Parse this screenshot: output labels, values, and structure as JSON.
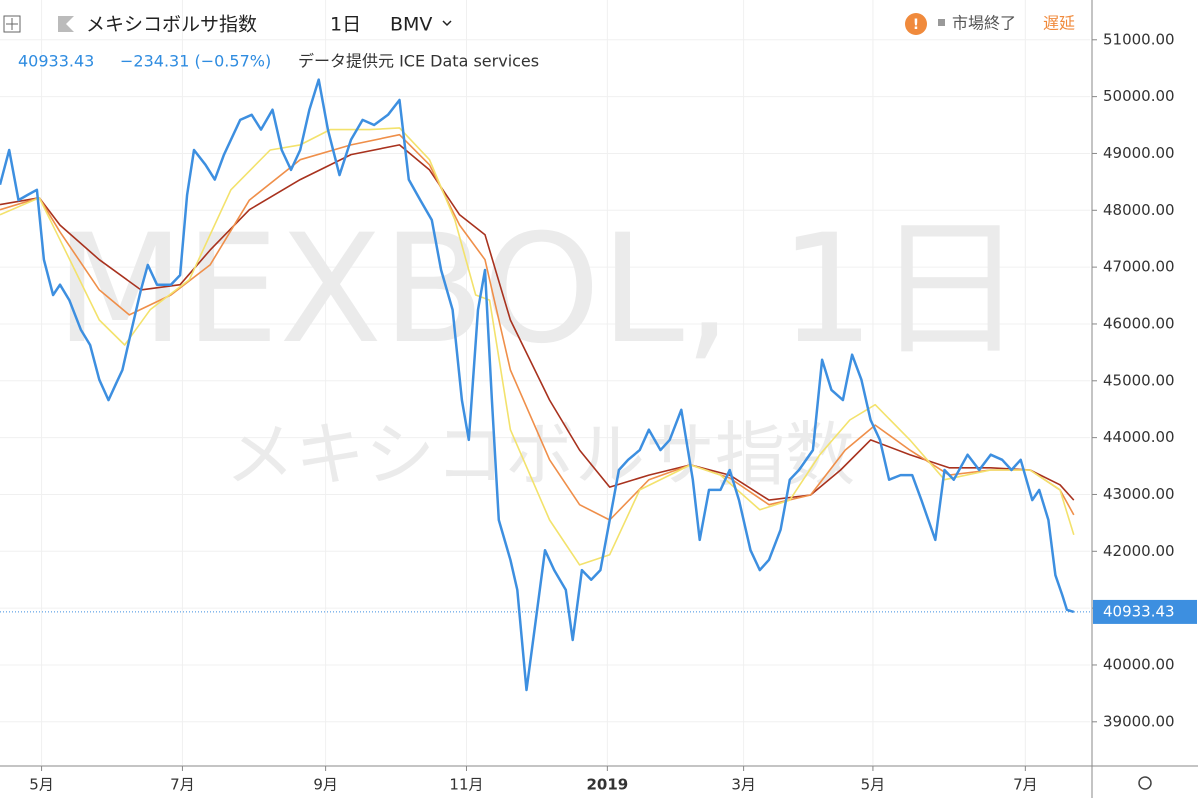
{
  "chart_data": {
    "type": "line",
    "title": "メキシコボルサ指数",
    "interval": "1日",
    "exchange": "BMV",
    "last": 40933.43,
    "change": "−234.31 (−0.57%)",
    "source": "データ提供元 ICE Data services",
    "status": "市場終了",
    "delay": "遅延",
    "watermark": "MEXBOL, 1日",
    "watermark_sub": "メキシコボルサ指数",
    "xlim": [
      0,
      472
    ],
    "xticks": [
      {
        "value": 18,
        "label": "5月"
      },
      {
        "value": 79,
        "label": "7月"
      },
      {
        "value": 141,
        "label": "9月"
      },
      {
        "value": 202,
        "label": "11月"
      },
      {
        "value": 263,
        "label": "2019"
      },
      {
        "value": 322,
        "label": "3月"
      },
      {
        "value": 378,
        "label": "5月"
      },
      {
        "value": 444,
        "label": "7月"
      }
    ],
    "ylim": [
      38240,
      51700
    ],
    "yticks": [
      {
        "value": 39000,
        "label": "39000.00"
      },
      {
        "value": 40000,
        "label": "40000.00"
      },
      {
        "value": 41000,
        "label": "41000.00"
      },
      {
        "value": 42000,
        "label": "42000.00"
      },
      {
        "value": 43000,
        "label": "43000.00"
      },
      {
        "value": 44000,
        "label": "44000.00"
      },
      {
        "value": 45000,
        "label": "45000.00"
      },
      {
        "value": 46000,
        "label": "46000.00"
      },
      {
        "value": 47000,
        "label": "47000.00"
      },
      {
        "value": 48000,
        "label": "48000.00"
      },
      {
        "value": 49000,
        "label": "49000.00"
      },
      {
        "value": 50000,
        "label": "50000.00"
      },
      {
        "value": 51000,
        "label": "51000.00"
      }
    ],
    "grid": true,
    "series": [
      {
        "color": "#a8321e",
        "x": [
          0,
          17,
          26,
          43,
          61,
          78,
          91,
          108,
          130,
          152,
          173,
          186,
          199,
          210,
          221,
          238,
          251,
          264,
          281,
          299,
          316,
          333,
          351,
          364,
          377,
          394,
          411,
          429,
          446,
          459,
          465
        ],
        "values": [
          48100,
          48220,
          47740,
          47130,
          46600,
          46690,
          47300,
          48010,
          48540,
          48980,
          49150,
          48710,
          47920,
          47570,
          46070,
          44660,
          43780,
          43130,
          43340,
          43520,
          43340,
          42900,
          42990,
          43430,
          43960,
          43700,
          43470,
          43470,
          43430,
          43170,
          42900
        ]
      },
      {
        "color": "#ef8f4a",
        "x": [
          0,
          17,
          26,
          43,
          56,
          74,
          91,
          108,
          130,
          152,
          173,
          186,
          199,
          210,
          221,
          238,
          251,
          264,
          281,
          299,
          316,
          333,
          351,
          366,
          379,
          394,
          411,
          429,
          446,
          459,
          465
        ],
        "values": [
          48010,
          48220,
          47620,
          46600,
          46160,
          46510,
          47040,
          48180,
          48890,
          49150,
          49330,
          48800,
          47740,
          47130,
          45190,
          43610,
          42820,
          42550,
          43260,
          43520,
          43290,
          42820,
          42990,
          43780,
          44220,
          43780,
          43340,
          43430,
          43430,
          43080,
          42640
        ]
      },
      {
        "color": "#f3e26c",
        "x": [
          0,
          17,
          26,
          43,
          54,
          65,
          82,
          100,
          117,
          130,
          143,
          160,
          173,
          186,
          197,
          206,
          212,
          221,
          238,
          251,
          264,
          277,
          299,
          312,
          329,
          342,
          355,
          368,
          379,
          394,
          409,
          429,
          446,
          459,
          465
        ],
        "values": [
          47920,
          48220,
          47480,
          46070,
          45630,
          46250,
          46780,
          48360,
          49060,
          49150,
          49420,
          49420,
          49450,
          48890,
          47830,
          46510,
          46420,
          44140,
          42550,
          41760,
          41940,
          43080,
          43520,
          43340,
          42730,
          42900,
          43700,
          44310,
          44580,
          43960,
          43260,
          43430,
          43430,
          43080,
          42290
        ]
      },
      {
        "color": "#3d8fe0",
        "x": [
          0,
          4,
          8,
          12,
          16,
          19,
          23,
          26,
          30,
          35,
          39,
          43,
          47,
          50,
          53,
          57,
          61,
          64,
          68,
          74,
          78,
          81,
          84,
          89,
          93,
          97,
          104,
          109,
          113,
          118,
          122,
          126,
          130,
          134,
          138,
          142,
          147,
          152,
          157,
          162,
          168,
          173,
          177,
          182,
          187,
          191,
          196,
          200,
          203,
          207,
          210,
          213,
          216,
          221,
          224,
          228,
          232,
          236,
          240,
          245,
          248,
          252,
          256,
          260,
          264,
          268,
          272,
          277,
          281,
          286,
          290,
          295,
          300,
          303,
          307,
          312,
          316,
          320,
          325,
          329,
          333,
          338,
          342,
          346,
          352,
          356,
          360,
          365,
          369,
          373,
          377,
          381,
          385,
          390,
          395,
          399,
          405,
          409,
          413,
          419,
          424,
          429,
          434,
          438,
          442,
          447,
          450,
          454,
          457,
          460,
          462,
          465
        ],
        "values": [
          48450,
          49060,
          48180,
          48270,
          48360,
          47130,
          46510,
          46690,
          46420,
          45900,
          45630,
          45020,
          44660,
          44930,
          45190,
          45900,
          46600,
          47040,
          46690,
          46690,
          46860,
          48270,
          49060,
          48800,
          48540,
          48980,
          49590,
          49680,
          49420,
          49770,
          49060,
          48710,
          49060,
          49770,
          50300,
          49420,
          48620,
          49240,
          49590,
          49500,
          49680,
          49940,
          48540,
          48180,
          47830,
          46950,
          46250,
          44660,
          43960,
          46250,
          46950,
          44660,
          42550,
          41850,
          41320,
          39560,
          40790,
          42020,
          41670,
          41320,
          40440,
          41670,
          41500,
          41670,
          42550,
          43430,
          43610,
          43780,
          44140,
          43780,
          43960,
          44490,
          43260,
          42200,
          43080,
          43080,
          43430,
          42900,
          42020,
          41670,
          41850,
          42380,
          43260,
          43430,
          43780,
          45370,
          44840,
          44660,
          45460,
          45020,
          44310,
          43960,
          43260,
          43340,
          43340,
          42900,
          42200,
          43430,
          43260,
          43700,
          43430,
          43700,
          43610,
          43430,
          43610,
          42900,
          43080,
          42550,
          41580,
          41230,
          40970,
          40933.43
        ]
      }
    ]
  }
}
